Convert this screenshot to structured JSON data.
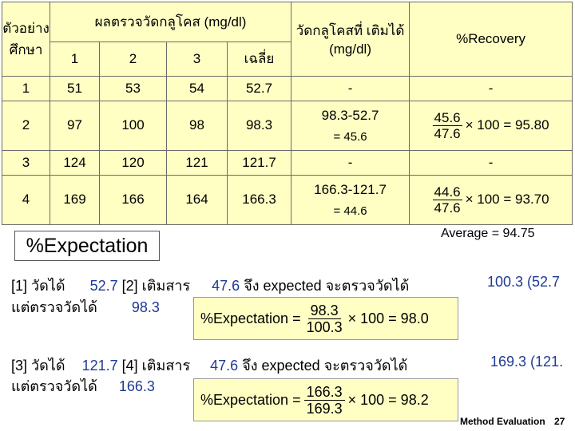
{
  "table": {
    "header_trial": "ตัวอย่าง ศึกษา",
    "header_result": "ผลตรวจวัดกลูโคส (mg/dl)",
    "header_sub": [
      "1",
      "2",
      "3",
      "เฉลี่ย"
    ],
    "header_measured": "วัดกลูโคสที่ เติมได้ (mg/dl)",
    "header_recovery": "%Recovery",
    "rows": [
      {
        "trial": "1",
        "v1": "51",
        "v2": "53",
        "v3": "54",
        "mean": "52.7",
        "added": "-",
        "recovery": "-"
      },
      {
        "trial": "2",
        "v1": "97",
        "v2": "100",
        "v3": "98",
        "mean": "98.3",
        "added": "98.3-52.7",
        "added2": "= 45.6",
        "rec_num": "45.6",
        "rec_den": "47.6",
        "rec_tail": "× 100 = 95.80"
      },
      {
        "trial": "3",
        "v1": "124",
        "v2": "120",
        "v3": "121",
        "mean": "121.7",
        "added": "-",
        "recovery": "-"
      },
      {
        "trial": "4",
        "v1": "169",
        "v2": "166",
        "v3": "164",
        "mean": "166.3",
        "added": "166.3-121.7",
        "added2": "= 44.6",
        "rec_num": "44.6",
        "rec_den": "47.6",
        "rec_tail": "× 100 = 93.70"
      }
    ]
  },
  "expectation_label": "%Expectation",
  "average": "Average = 94.75",
  "block1": {
    "a": "[1] วัดได้",
    "a_val": "52.7",
    "b": "[2] เติมสาร",
    "b_val": "47.6",
    "c": "จึง expected จะตรวจวัดได้",
    "c_val": "100.3 (52.7",
    "d": "แต่ตรวจวัดได้",
    "d_val": "98.3",
    "f_label": "%Expectation =",
    "f_num": "98.3",
    "f_den": "100.3",
    "f_tail": "× 100 = 98.0"
  },
  "block2": {
    "a": "[3] วัดได้",
    "a_val": "121.7",
    "b": "[4] เติมสาร",
    "b_val": "47.6",
    "c": "จึง expected จะตรวจวัดได้",
    "c_val": "169.3 (121.",
    "d": "แต่ตรวจวัดได้",
    "d_val": "166.3",
    "f_label": "%Expectation =",
    "f_num": "166.3",
    "f_den": "169.3",
    "f_tail": "× 100 = 98.2"
  },
  "footer": {
    "title": "Method Evaluation",
    "page": "27"
  }
}
